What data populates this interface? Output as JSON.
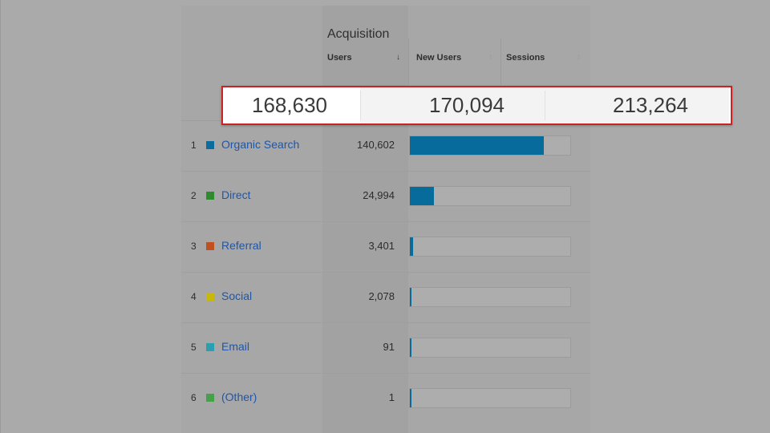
{
  "header": {
    "group_title": "Acquisition",
    "columns": [
      {
        "label": "Users",
        "sort": "desc"
      },
      {
        "label": "New Users",
        "sort": "none"
      },
      {
        "label": "Sessions",
        "sort": "none"
      }
    ],
    "sort_active_glyph": "↓",
    "sort_inactive_glyph": "↕"
  },
  "totals": {
    "users": "168,630",
    "new_users": "170,094",
    "sessions": "213,264"
  },
  "rows": [
    {
      "rank": "1",
      "label": "Organic Search",
      "users": "140,602",
      "color": "#0b6d9e",
      "share": 0.834
    },
    {
      "rank": "2",
      "label": "Direct",
      "users": "24,994",
      "color": "#2e8b2e",
      "share": 0.148
    },
    {
      "rank": "3",
      "label": "Referral",
      "users": "3,401",
      "color": "#c0501e",
      "share": 0.02
    },
    {
      "rank": "4",
      "label": "Social",
      "users": "2,078",
      "color": "#c8b80a",
      "share": 0.012
    },
    {
      "rank": "5",
      "label": "Email",
      "users": "91",
      "color": "#2a9fb0",
      "share": 0.001
    },
    {
      "rank": "6",
      "label": "(Other)",
      "users": "1",
      "color": "#46a24a",
      "share": 0.0001
    }
  ],
  "colors": {
    "bar": "#076b9c",
    "link": "#1f56a8",
    "highlight_border": "#cc2222"
  }
}
